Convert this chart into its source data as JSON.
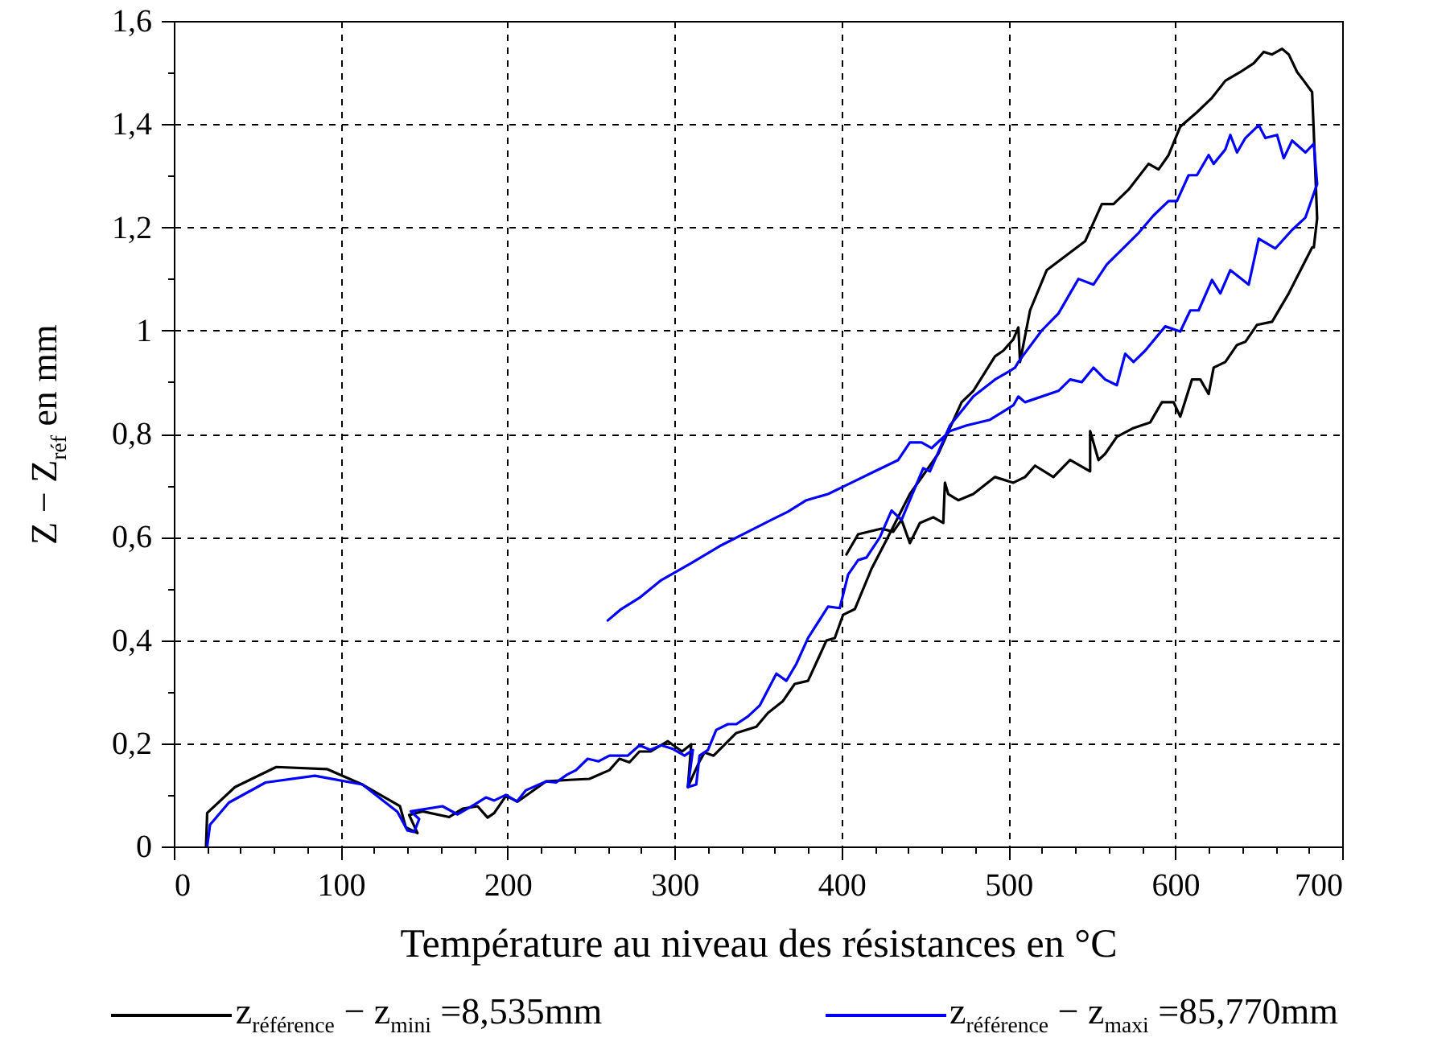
{
  "chart_data": {
    "type": "line",
    "xlabel": "Température au niveau des résistances en °C",
    "ylabel": "Z − Z$_{réf}$ en mm",
    "xlim": [
      0,
      700
    ],
    "ylim": [
      0,
      1.6
    ],
    "xticks": [
      0,
      {
        "value": 20,
        "label": null
      },
      {
        "value": 40,
        "label": null
      },
      {
        "value": 60,
        "label": null
      },
      {
        "value": 80,
        "label": null
      },
      100,
      {
        "value": 120,
        "label": null
      },
      {
        "value": 140,
        "label": null
      },
      {
        "value": 160,
        "label": null
      },
      {
        "value": 180,
        "label": null
      },
      200,
      {
        "value": 220,
        "label": null
      },
      {
        "value": 240,
        "label": null
      },
      {
        "value": 260,
        "label": null
      },
      {
        "value": 280,
        "label": null
      },
      300,
      {
        "value": 320,
        "label": null
      },
      {
        "value": 340,
        "label": null
      },
      {
        "value": 360,
        "label": null
      },
      {
        "value": 380,
        "label": null
      },
      400,
      {
        "value": 420,
        "label": null
      },
      {
        "value": 440,
        "label": null
      },
      {
        "value": 460,
        "label": null
      },
      {
        "value": 480,
        "label": null
      },
      500,
      {
        "value": 520,
        "label": null
      },
      {
        "value": 540,
        "label": null
      },
      {
        "value": 560,
        "label": null
      },
      {
        "value": 580,
        "label": null
      },
      600,
      {
        "value": 620,
        "label": null
      },
      {
        "value": 640,
        "label": null
      },
      {
        "value": 660,
        "label": null
      },
      {
        "value": 680,
        "label": null
      },
      700
    ],
    "yticks": [
      0,
      {
        "value": 0.1,
        "label": null
      },
      {
        "value": 0.2,
        "label": "0,2"
      },
      {
        "value": 0.3,
        "label": null
      },
      {
        "value": 0.4,
        "label": "0,4"
      },
      {
        "value": 0.5,
        "label": null
      },
      {
        "value": 0.6,
        "label": "0,6"
      },
      {
        "value": 0.7,
        "label": null
      },
      {
        "value": 0.8,
        "label": "0,8"
      },
      {
        "value": 0.9,
        "label": null
      },
      1,
      {
        "value": 1.1,
        "label": null
      },
      {
        "value": 1.2,
        "label": "1,2"
      },
      {
        "value": 1.3,
        "label": null
      },
      {
        "value": 1.4,
        "label": "1,4"
      },
      {
        "value": 1.5,
        "label": null
      },
      {
        "value": 1.6,
        "label": "1,6"
      }
    ],
    "grid": true,
    "legend": "bottom",
    "series": [
      {
        "name": "z$_{référence}$ − z$_{mini}$ =8,535mm",
        "color": "#000000",
        "x": [
          19.3,
          20,
          36.6,
          61.4,
          91.7,
          113,
          135.5,
          139,
          146,
          141,
          149,
          165,
          173,
          182,
          188,
          192,
          199,
          206,
          223,
          237,
          249,
          261,
          267,
          273,
          279,
          285.5,
          296,
          304.5,
          310,
          308,
          311,
          315,
          318,
          323.4,
          337,
          349,
          356,
          365,
          372,
          380,
          391,
          396,
          401,
          408,
          418,
          427,
          441,
          458,
          472,
          479,
          492,
          497,
          503,
          506,
          507,
          513,
          523,
          546,
          556,
          563,
          572,
          584,
          590,
          596,
          603,
          613,
          622,
          630,
          639,
          647,
          653,
          658,
          664,
          668,
          673,
          677,
          682,
          683,
          685,
          683,
          682,
          668,
          658,
          649,
          642,
          637,
          630,
          623,
          620,
          615,
          610,
          603,
          599,
          592,
          585,
          575,
          565,
          558,
          554,
          549,
          549,
          537,
          527,
          516,
          510,
          503,
          492,
          479,
          470,
          464,
          462,
          461,
          455,
          447,
          441,
          436,
          431,
          424,
          410,
          403
        ],
        "values": [
          0,
          0.065,
          0.115,
          0.154,
          0.15,
          0.12,
          0.078,
          0.037,
          0.026,
          0.061,
          0.068,
          0.057,
          0.073,
          0.078,
          0.056,
          0.065,
          0.098,
          0.087,
          0.126,
          0.129,
          0.131,
          0.148,
          0.17,
          0.163,
          0.184,
          0.184,
          0.204,
          0.184,
          0.198,
          0.115,
          0.137,
          0.165,
          0.182,
          0.176,
          0.22,
          0.232,
          0.259,
          0.282,
          0.315,
          0.321,
          0.399,
          0.404,
          0.449,
          0.46,
          0.538,
          0.594,
          0.683,
          0.761,
          0.861,
          0.883,
          0.95,
          0.961,
          0.983,
          1.006,
          0.939,
          1.039,
          1.117,
          1.173,
          1.245,
          1.245,
          1.273,
          1.323,
          1.312,
          1.34,
          1.395,
          1.423,
          1.451,
          1.484,
          1.501,
          1.518,
          1.54,
          1.535,
          1.546,
          1.535,
          1.501,
          1.484,
          1.462,
          1.384,
          1.217,
          1.161,
          1.161,
          1.072,
          1.017,
          1.011,
          0.978,
          0.972,
          0.939,
          0.928,
          0.877,
          0.905,
          0.905,
          0.833,
          0.861,
          0.861,
          0.822,
          0.811,
          0.794,
          0.761,
          0.749,
          0.805,
          0.727,
          0.749,
          0.716,
          0.738,
          0.716,
          0.705,
          0.716,
          0.683,
          0.671,
          0.683,
          0.705,
          0.627,
          0.638,
          0.627,
          0.588,
          0.633,
          0.61,
          0.616,
          0.605,
          0.566
        ]
      },
      {
        "name": "z$_{référence}$ − z$_{maxi}$ =85,770mm",
        "color": "#0000ff",
        "x": [
          20,
          21.7,
          33,
          55,
          84.5,
          113,
          134,
          140,
          144,
          147,
          142,
          161,
          170,
          180,
          187,
          192,
          199,
          205.5,
          211,
          223,
          229,
          235.5,
          241,
          248,
          254.5,
          261,
          272,
          279,
          285.5,
          292,
          299,
          306,
          311,
          308,
          313,
          315,
          320,
          325,
          332,
          337,
          344,
          351,
          361,
          367,
          373,
          380,
          392,
          399,
          404,
          410,
          415,
          423,
          430,
          436,
          449,
          453,
          465,
          479,
          492,
          501,
          504,
          506,
          520,
          530,
          542,
          551,
          559,
          578,
          587,
          596,
          601,
          608,
          613,
          620,
          623,
          630,
          633,
          637,
          642,
          650,
          654,
          661,
          665,
          670,
          678,
          683,
          685,
          678,
          670,
          660,
          650,
          644,
          633,
          627,
          622,
          614,
          609,
          603,
          594,
          582,
          575,
          570,
          565,
          558,
          551,
          544,
          537,
          530,
          510,
          506,
          503,
          489,
          475,
          465,
          454,
          448,
          441,
          434,
          420,
          406,
          392,
          379,
          368,
          358,
          344,
          327,
          310,
          292,
          279,
          268,
          260
        ],
        "values": [
          0,
          0.042,
          0.085,
          0.124,
          0.137,
          0.12,
          0.067,
          0.031,
          0.028,
          0.053,
          0.068,
          0.078,
          0.062,
          0.081,
          0.095,
          0.089,
          0.1,
          0.087,
          0.109,
          0.126,
          0.124,
          0.139,
          0.148,
          0.17,
          0.165,
          0.176,
          0.176,
          0.196,
          0.187,
          0.196,
          0.189,
          0.176,
          0.187,
          0.115,
          0.12,
          0.176,
          0.187,
          0.226,
          0.237,
          0.237,
          0.252,
          0.273,
          0.335,
          0.321,
          0.354,
          0.404,
          0.465,
          0.462,
          0.527,
          0.555,
          0.56,
          0.599,
          0.651,
          0.633,
          0.733,
          0.727,
          0.816,
          0.872,
          0.905,
          0.922,
          0.928,
          0.939,
          1.0,
          1.033,
          1.1,
          1.089,
          1.128,
          1.189,
          1.223,
          1.251,
          1.251,
          1.301,
          1.301,
          1.34,
          1.323,
          1.351,
          1.379,
          1.345,
          1.373,
          1.398,
          1.373,
          1.379,
          1.334,
          1.368,
          1.345,
          1.362,
          1.284,
          1.219,
          1.195,
          1.159,
          1.178,
          1.089,
          1.117,
          1.072,
          1.098,
          1.039,
          1.039,
          0.998,
          1.008,
          0.961,
          0.939,
          0.955,
          0.894,
          0.905,
          0.928,
          0.9,
          0.905,
          0.883,
          0.861,
          0.872,
          0.855,
          0.827,
          0.816,
          0.805,
          0.772,
          0.783,
          0.783,
          0.749,
          0.727,
          0.705,
          0.683,
          0.671,
          0.649,
          0.633,
          0.61,
          0.582,
          0.549,
          0.516,
          0.482,
          0.46,
          0.438
        ]
      }
    ]
  }
}
